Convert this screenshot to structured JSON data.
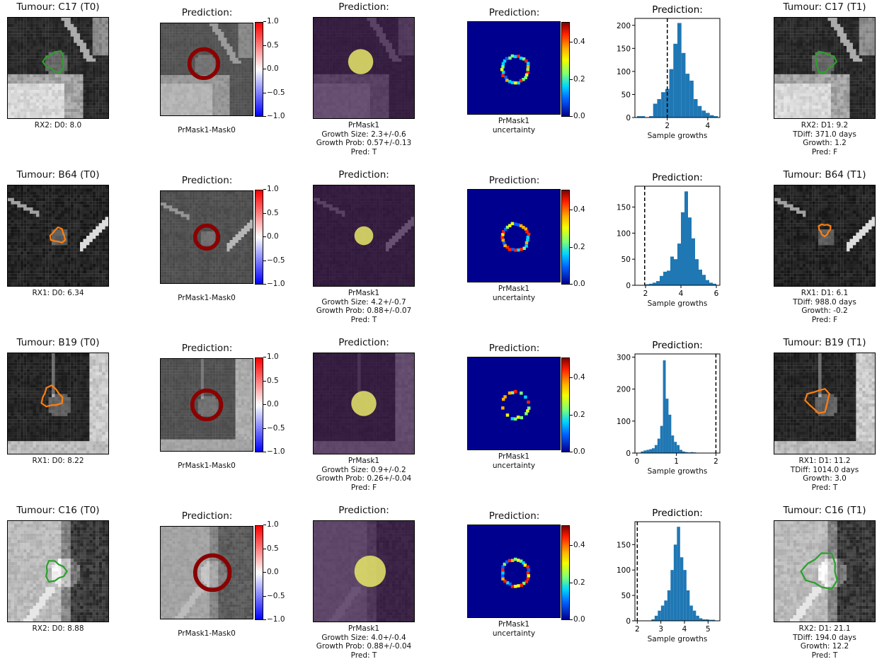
{
  "colorbar_diff": {
    "ticks": [
      "1.0",
      "0.5",
      "0.0",
      "−0.5",
      "−1.0"
    ]
  },
  "colorbar_uncertainty": {
    "ticks": [
      "0.4",
      "0.2",
      "0.0"
    ]
  },
  "rows": [
    {
      "t0_title": "Tumour: C17 (T0)",
      "t0_caption": "RX2: D0: 8.0",
      "diff_title": "Prediction:",
      "diff_caption": "PrMask1-Mask0",
      "mask_title": "Prediction:",
      "mask_caption": [
        "PrMask1",
        "Growth Size: 2.3+/-0.6",
        "Growth Prob: 0.57+/-0.13",
        "Pred: T"
      ],
      "unc_title": "Prediction:",
      "unc_caption": [
        "PrMask1",
        "uncertainty"
      ],
      "t1_title": "Tumour: C17 (T1)",
      "t1_caption": [
        "RX2: D1: 9.2",
        "TDiff: 371.0 days",
        "Growth: 1.2",
        "Pred: F"
      ],
      "contour_color": "#2ca02c",
      "scan_tone": "bright-lower-left"
    },
    {
      "t0_title": "Tumour: B64 (T0)",
      "t0_caption": "RX1: D0: 6.34",
      "diff_title": "Prediction:",
      "diff_caption": "PrMask1-Mask0",
      "mask_title": "Prediction:",
      "mask_caption": [
        "PrMask1",
        "Growth Size: 4.2+/-0.7",
        "Growth Prob: 0.88+/-0.07",
        "Pred: T"
      ],
      "unc_title": "Prediction:",
      "unc_caption": [
        "PrMask1",
        "uncertainty"
      ],
      "t1_title": "Tumour: B64 (T1)",
      "t1_caption": [
        "RX1: D1: 6.1",
        "TDiff: 988.0 days",
        "Growth: -0.2",
        "Pred: F"
      ],
      "contour_color": "#ff7f0e",
      "scan_tone": "dark"
    },
    {
      "t0_title": "Tumour: B19 (T0)",
      "t0_caption": "RX1: D0: 8.22",
      "diff_title": "Prediction:",
      "diff_caption": "PrMask1-Mask0",
      "mask_title": "Prediction:",
      "mask_caption": [
        "PrMask1",
        "Growth Size: 0.9+/-0.2",
        "Growth Prob: 0.26+/-0.04",
        "Pred: F"
      ],
      "unc_title": "Prediction:",
      "unc_caption": [
        "PrMask1",
        "uncertainty"
      ],
      "t1_title": "Tumour: B19 (T1)",
      "t1_caption": [
        "RX1: D1: 11.2",
        "TDiff: 1014.0 days",
        "Growth: 3.0",
        "Pred: T"
      ],
      "contour_color": "#ff7f0e",
      "scan_tone": "dark-right-edge"
    },
    {
      "t0_title": "Tumour: C16 (T0)",
      "t0_caption": "RX2: D0: 8.88",
      "diff_title": "Prediction:",
      "diff_caption": "PrMask1-Mask0",
      "mask_title": "Prediction:",
      "mask_caption": [
        "PrMask1",
        "Growth Size: 4.0+/-0.4",
        "Growth Prob: 0.88+/-0.04",
        "Pred: T"
      ],
      "unc_title": "Prediction:",
      "unc_caption": [
        "PrMask1",
        "uncertainty"
      ],
      "t1_title": "Tumour: C16 (T1)",
      "t1_caption": [
        "RX2: D1: 21.1",
        "TDiff: 194.0 days",
        "Growth: 12.2",
        "Pred: T"
      ],
      "contour_color": "#2ca02c",
      "scan_tone": "bright-left"
    }
  ],
  "chart_data": [
    {
      "type": "bar",
      "title": "Prediction:",
      "xlabel": "Sample growths",
      "ylabel": "",
      "xlim": [
        0.4,
        4.6
      ],
      "ylim": [
        0,
        215
      ],
      "xticks": [
        2,
        4
      ],
      "yticks": [
        0,
        50,
        100,
        150,
        200
      ],
      "bin_start": 0.5,
      "bin_width": 0.2,
      "values": [
        3,
        3,
        0,
        3,
        30,
        40,
        55,
        62,
        105,
        160,
        205,
        140,
        95,
        80,
        40,
        25,
        15,
        10,
        5,
        3
      ],
      "reference_line_x": 2,
      "bar_color": "#1f77b4"
    },
    {
      "type": "bar",
      "title": "Prediction:",
      "xlabel": "Sample growths",
      "ylabel": "",
      "xlim": [
        1.4,
        6.2
      ],
      "ylim": [
        0,
        190
      ],
      "xticks": [
        2,
        4,
        6
      ],
      "yticks": [
        0,
        50,
        100,
        150
      ],
      "bin_start": 2.0,
      "bin_width": 0.2,
      "values": [
        2,
        3,
        5,
        8,
        18,
        26,
        28,
        55,
        50,
        80,
        140,
        180,
        130,
        90,
        50,
        30,
        20,
        10,
        5,
        3
      ],
      "reference_line_x": 1.95,
      "bar_color": "#1f77b4"
    },
    {
      "type": "bar",
      "title": "Prediction:",
      "xlabel": "Sample growths",
      "ylabel": "",
      "xlim": [
        -0.05,
        2.1
      ],
      "ylim": [
        0,
        310
      ],
      "xticks": [
        0,
        1,
        2
      ],
      "yticks": [
        0,
        100,
        200,
        300
      ],
      "bin_start": 0.1,
      "bin_width": 0.07,
      "values": [
        5,
        8,
        10,
        12,
        15,
        25,
        45,
        85,
        290,
        170,
        120,
        55,
        35,
        25,
        10,
        5,
        3,
        2,
        3,
        2
      ],
      "reference_line_x": 2.0,
      "bar_color": "#1f77b4"
    },
    {
      "type": "bar",
      "title": "Prediction:",
      "xlabel": "Sample growths",
      "ylabel": "",
      "xlim": [
        1.9,
        5.5
      ],
      "ylim": [
        0,
        195
      ],
      "xticks": [
        2,
        3,
        4,
        5
      ],
      "yticks": [
        0,
        50,
        100,
        150
      ],
      "bin_start": 2.6,
      "bin_width": 0.135,
      "values": [
        3,
        10,
        20,
        30,
        40,
        60,
        100,
        150,
        185,
        125,
        100,
        60,
        30,
        20,
        10,
        5,
        3,
        3,
        2,
        2
      ],
      "reference_line_x": 2.0,
      "bar_color": "#1f77b4"
    }
  ]
}
